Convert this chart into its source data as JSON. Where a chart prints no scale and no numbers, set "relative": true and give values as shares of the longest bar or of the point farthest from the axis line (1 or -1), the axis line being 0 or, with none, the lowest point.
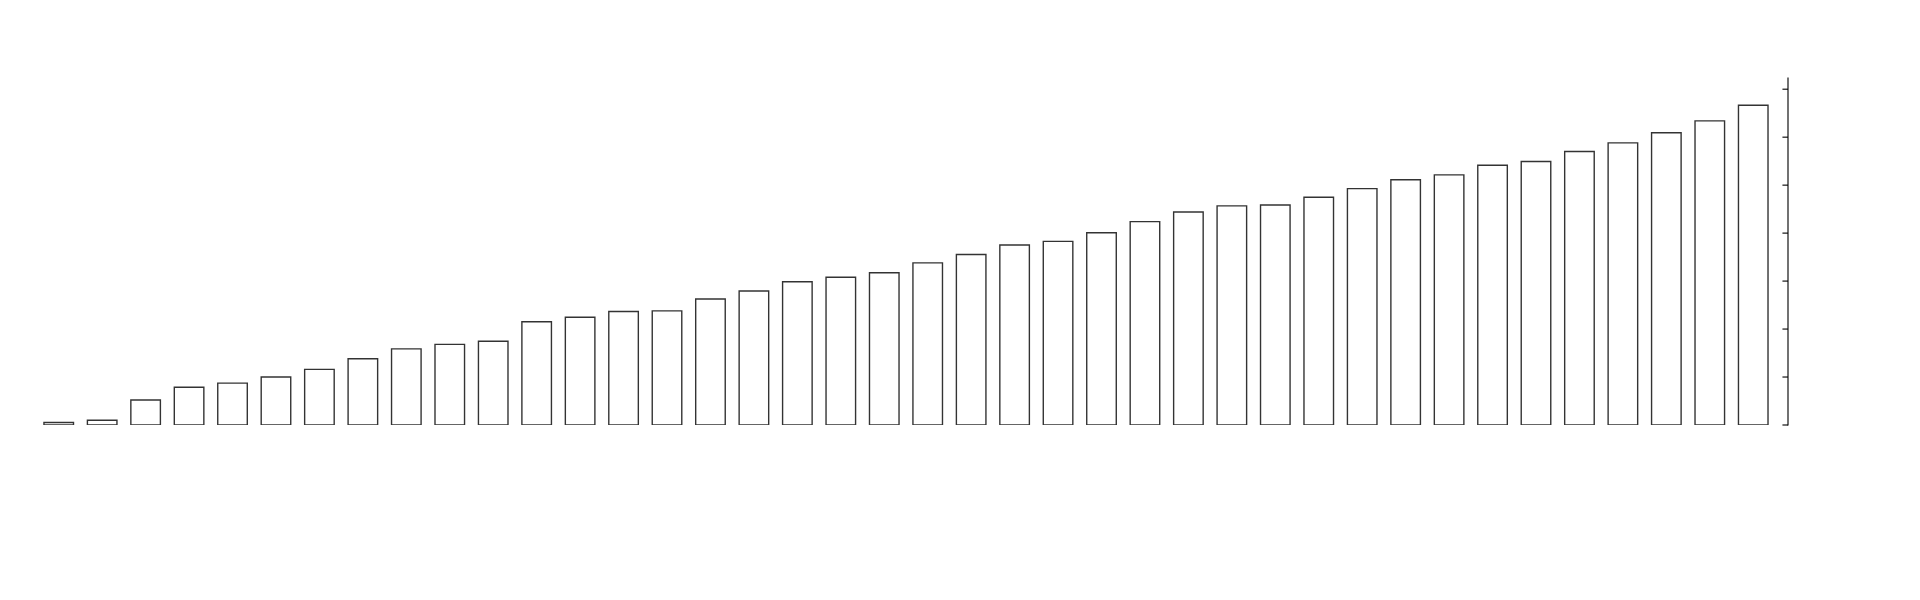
{
  "chart_data": {
    "type": "bar",
    "relative": true,
    "color": "#ffffff",
    "categories": [
      null,
      null,
      null,
      null,
      null,
      null,
      null,
      null,
      null,
      null,
      null,
      null,
      null,
      null,
      null,
      null,
      null,
      null,
      null,
      null,
      null,
      null,
      null,
      null,
      null,
      null,
      null,
      null,
      null,
      null,
      null,
      null,
      null,
      null,
      null,
      null,
      null,
      null,
      null,
      null
    ],
    "values": [
      0.008,
      0.015,
      0.078,
      0.118,
      0.131,
      0.15,
      0.174,
      0.207,
      0.238,
      0.252,
      0.262,
      0.323,
      0.337,
      0.355,
      0.357,
      0.394,
      0.419,
      0.448,
      0.462,
      0.476,
      0.507,
      0.533,
      0.563,
      0.574,
      0.601,
      0.636,
      0.666,
      0.685,
      0.688,
      0.712,
      0.739,
      0.767,
      0.782,
      0.812,
      0.824,
      0.855,
      0.882,
      0.914,
      0.951,
      1
    ],
    "grid": false,
    "legend": false
  }
}
